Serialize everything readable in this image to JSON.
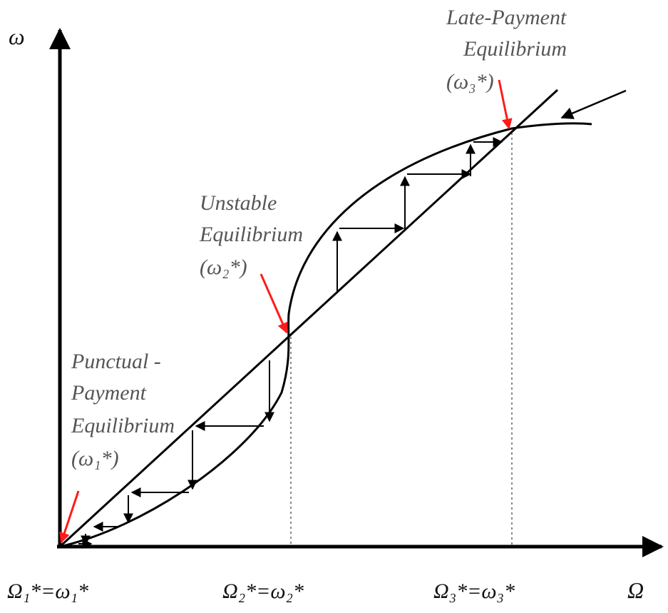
{
  "axes": {
    "y_label": "ω",
    "x_label": "Ω"
  },
  "equilibria": {
    "late": {
      "line1": "Late-Payment",
      "line2": "Equilibrium",
      "line3": "(ω₃*)"
    },
    "unstable": {
      "line1": "Unstable",
      "line2": "Equilibrium",
      "line3": "(ω₂*)"
    },
    "punctual": {
      "line1": "Punctual -",
      "line2": "Payment",
      "line3": "Equilibrium",
      "line4": "(ω₁*)"
    }
  },
  "x_ticks": [
    "Ω₁*=ω₁*",
    "Ω₂*=ω₂*",
    "Ω₃*=ω₃*"
  ],
  "colors": {
    "ink": "#000000",
    "highlight": "#ff1a1a",
    "label": "#555555",
    "guide": "#888888"
  }
}
